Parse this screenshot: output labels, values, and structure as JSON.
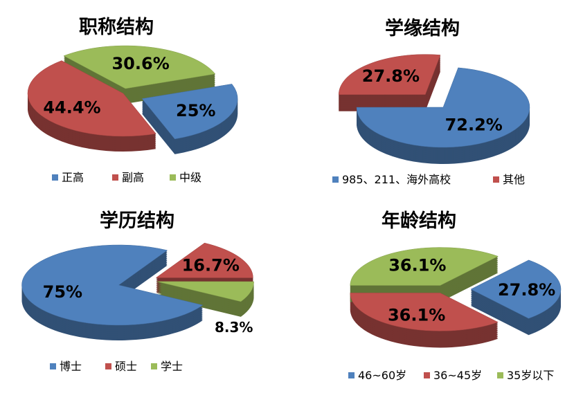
{
  "colors": {
    "blue": "#4F81BD",
    "red": "#C0504D",
    "green": "#9BBB59"
  },
  "chart_data": [
    {
      "type": "pie",
      "title": "职称结构",
      "legend_position": "bottom",
      "categories": [
        "正高",
        "副高",
        "中级"
      ],
      "values": [
        25,
        44.4,
        30.6
      ],
      "labels": [
        "25%",
        "44.4%",
        "30.6%"
      ],
      "colors": [
        "#4F81BD",
        "#C0504D",
        "#9BBB59"
      ],
      "style": "3d-exploded"
    },
    {
      "type": "pie",
      "title": "学缘结构",
      "legend_position": "bottom",
      "categories": [
        "985、211、海外高校",
        "其他"
      ],
      "values": [
        72.2,
        27.8
      ],
      "labels": [
        "72.2%",
        "27.8%"
      ],
      "colors": [
        "#4F81BD",
        "#C0504D"
      ],
      "style": "3d-exploded"
    },
    {
      "type": "pie",
      "title": "学历结构",
      "legend_position": "bottom",
      "categories": [
        "博士",
        "硕士",
        "学士"
      ],
      "values": [
        75,
        16.7,
        8.3
      ],
      "labels": [
        "75%",
        "16.7%",
        "8.3%"
      ],
      "colors": [
        "#4F81BD",
        "#C0504D",
        "#9BBB59"
      ],
      "style": "3d-exploded"
    },
    {
      "type": "pie",
      "title": "年龄结构",
      "legend_position": "bottom",
      "categories": [
        "46~60岁",
        "36~45岁",
        "35岁以下"
      ],
      "values": [
        27.8,
        36.1,
        36.1
      ],
      "labels": [
        "27.8%",
        "36.1%",
        "36.1%"
      ],
      "colors": [
        "#4F81BD",
        "#C0504D",
        "#9BBB59"
      ],
      "style": "3d-exploded"
    }
  ]
}
